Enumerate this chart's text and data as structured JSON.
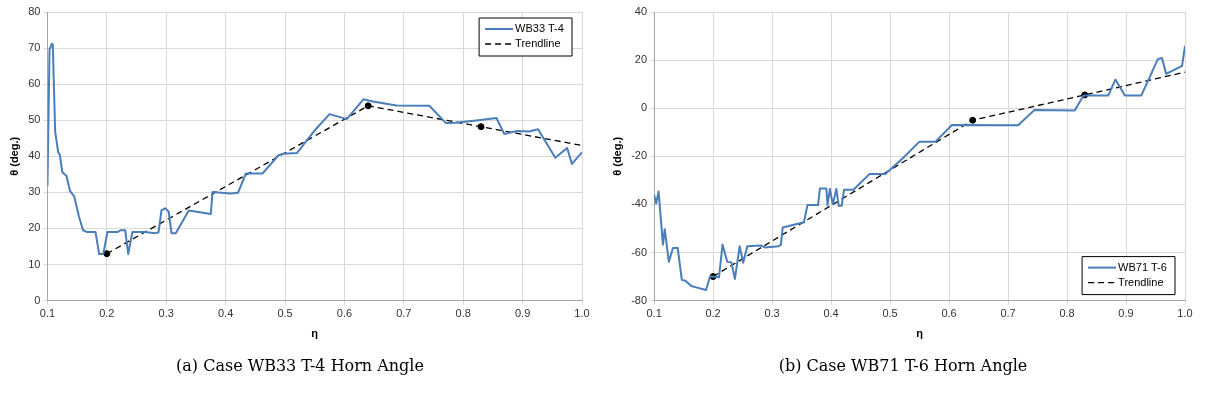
{
  "chart_data": [
    {
      "type": "line",
      "xlabel": "η",
      "ylabel": "θ (deg.)",
      "annotations": [
        "(a) Case WB33 T-4 Horn Angle"
      ],
      "xlim": [
        0.1,
        1.0
      ],
      "ylim": [
        0,
        80
      ],
      "xticks": [
        0.1,
        0.2,
        0.3,
        0.4,
        0.5,
        0.6,
        0.7,
        0.8,
        0.9,
        {
          "value": 1.0,
          "label": "1.0"
        }
      ],
      "yticks": [
        0,
        10,
        20,
        30,
        40,
        50,
        60,
        70,
        80
      ],
      "grid": true,
      "legend": "top right",
      "marker": "none",
      "series": [
        {
          "name": "WB33 T-4",
          "color": "#4a7ebb",
          "x": [
            0.1,
            0.1035,
            0.1075,
            0.109,
            0.113,
            0.118,
            0.121,
            0.125,
            0.132,
            0.138,
            0.145,
            0.153,
            0.16,
            0.167,
            0.181,
            0.187,
            0.194,
            0.201,
            0.218,
            0.223,
            0.231,
            0.236,
            0.243,
            0.264,
            0.281,
            0.287,
            0.292,
            0.298,
            0.304,
            0.309,
            0.316,
            0.338,
            0.375,
            0.378,
            0.408,
            0.421,
            0.434,
            0.462,
            0.489,
            0.497,
            0.52,
            0.549,
            0.575,
            0.604,
            0.632,
            0.648,
            0.688,
            0.743,
            0.771,
            0.787,
            0.822,
            0.856,
            0.869,
            0.891,
            0.911,
            0.926,
            0.955,
            0.975,
            0.983,
            1.0
          ],
          "values": [
            31.8,
            69.6,
            71.2,
            71,
            46.9,
            41.2,
            40.3,
            35.6,
            34.6,
            30.4,
            28.9,
            23.3,
            19.5,
            19,
            19,
            12.9,
            12.9,
            19,
            19,
            19.5,
            19.5,
            12.9,
            19,
            19,
            18.7,
            18.9,
            25,
            25.6,
            24.7,
            18.7,
            18.7,
            25,
            24,
            30.1,
            29.7,
            29.9,
            35.2,
            35.2,
            40.3,
            40.7,
            40.9,
            47,
            51.7,
            50.3,
            55.8,
            55.2,
            54.1,
            54,
            49.2,
            49.3,
            49.9,
            50.6,
            46.2,
            47,
            46.9,
            47.5,
            39.6,
            42.3,
            37.9,
            41.1
          ]
        },
        {
          "name": "Trendline",
          "type": "line",
          "line_style": "dashed",
          "color": "#000000",
          "x": [
            0.2,
            0.64,
            0.83,
            1.0
          ],
          "values": [
            13,
            54,
            48.2,
            43
          ]
        },
        {
          "type": "scatter",
          "marker": "circle",
          "color": "#000000",
          "x": [
            0.2,
            0.64,
            0.83
          ],
          "values": [
            13,
            54,
            48.2
          ]
        }
      ]
    },
    {
      "type": "line",
      "xlabel": "η",
      "ylabel": "θ (deg.)",
      "annotations": [
        "(b) Case WB71 T-6 Horn Angle"
      ],
      "xlim": [
        0.1,
        1.0
      ],
      "ylim": [
        -80,
        40
      ],
      "xticks": [
        0.1,
        0.2,
        0.3,
        0.4,
        0.5,
        0.6,
        0.7,
        0.8,
        0.9,
        {
          "value": 1.0,
          "label": "1.0"
        }
      ],
      "yticks": [
        -80,
        -60,
        -40,
        -20,
        0,
        20,
        40
      ],
      "grid": true,
      "legend": "bottom right",
      "marker": "none",
      "series": [
        {
          "name": "WB71 T-6",
          "color": "#4a7ebb",
          "x": [
            0.1,
            0.1035,
            0.1076,
            0.115,
            0.118,
            0.125,
            0.132,
            0.14,
            0.147,
            0.153,
            0.163,
            0.173,
            0.188,
            0.195,
            0.21,
            0.216,
            0.224,
            0.231,
            0.237,
            0.245,
            0.251,
            0.258,
            0.281,
            0.288,
            0.311,
            0.315,
            0.318,
            0.354,
            0.36,
            0.378,
            0.381,
            0.392,
            0.394,
            0.398,
            0.403,
            0.409,
            0.413,
            0.418,
            0.422,
            0.438,
            0.465,
            0.492,
            0.522,
            0.55,
            0.577,
            0.605,
            0.717,
            0.745,
            0.813,
            0.828,
            0.87,
            0.882,
            0.898,
            0.926,
            0.954,
            0.961,
            0.968,
            0.995,
            1.0
          ],
          "values": [
            -36,
            -39.6,
            -34.6,
            -56.7,
            -50.3,
            -63.9,
            -58.1,
            -58.1,
            -71.4,
            -71.7,
            -73.9,
            -74.6,
            -75.6,
            -69.9,
            -70.3,
            -56.7,
            -63.9,
            -64.1,
            -71,
            -57.4,
            -64.3,
            -57.4,
            -57.1,
            -57.9,
            -57.4,
            -56.7,
            -49.6,
            -47.4,
            -40.3,
            -40.3,
            -33.4,
            -33.4,
            -40.3,
            -33.6,
            -40,
            -33.6,
            -40.6,
            -40.6,
            -33.9,
            -33.9,
            -27.4,
            -27.4,
            -20.7,
            -13.9,
            -13.9,
            -7,
            -7.1,
            -0.7,
            -1,
            5.3,
            5.3,
            11.9,
            5.3,
            5.3,
            20.4,
            20.9,
            14.3,
            17.6,
            25.9
          ]
        },
        {
          "name": "Trendline",
          "type": "line",
          "line_style": "dashed",
          "color": "#000000",
          "x": [
            0.2,
            0.64,
            0.83,
            1.0
          ],
          "values": [
            -70,
            -5,
            5.5,
            15
          ]
        },
        {
          "type": "scatter",
          "marker": "circle",
          "color": "#000000",
          "x": [
            0.2,
            0.64,
            0.83
          ],
          "values": [
            -70,
            -5,
            5.5
          ]
        }
      ]
    }
  ]
}
